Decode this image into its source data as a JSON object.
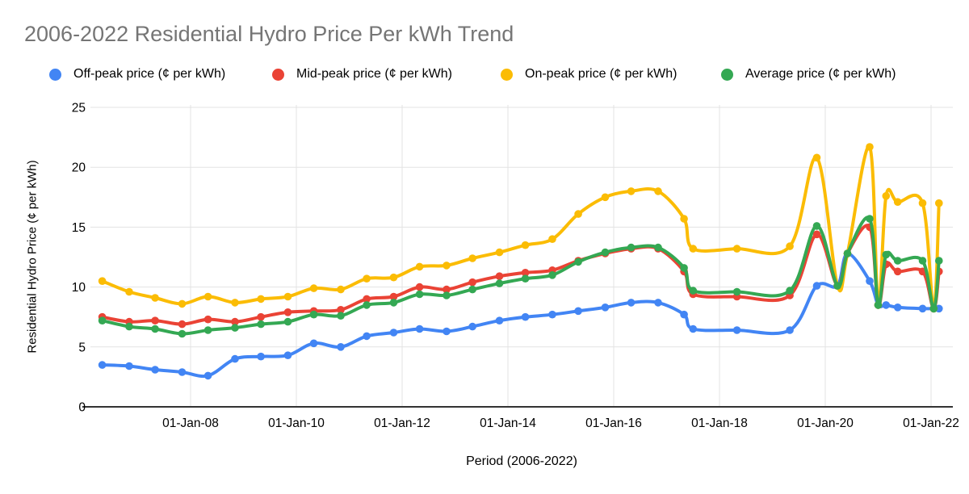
{
  "title": "2006-2022 Residential Hydro Price Per kWh Trend",
  "chart_data": {
    "type": "line",
    "smooth": true,
    "grid": true,
    "legend_position": "top",
    "title": "2006-2022 Residential Hydro Price Per kWh Trend",
    "x_axis": {
      "label": "Period (2006-2022)",
      "range_years": [
        2006,
        2022.4
      ],
      "ticks": [
        {
          "year": 2008,
          "label": "01-Jan-08"
        },
        {
          "year": 2010,
          "label": "01-Jan-10"
        },
        {
          "year": 2012,
          "label": "01-Jan-12"
        },
        {
          "year": 2014,
          "label": "01-Jan-14"
        },
        {
          "year": 2016,
          "label": "01-Jan-16"
        },
        {
          "year": 2018,
          "label": "01-Jan-18"
        },
        {
          "year": 2020,
          "label": "01-Jan-20"
        },
        {
          "year": 2022,
          "label": "01-Jan-22"
        }
      ]
    },
    "y_axis": {
      "label": "Residential Hydro Price (¢ per kWh)",
      "ticks": [
        0,
        5,
        10,
        15,
        20,
        25
      ],
      "range": [
        0,
        25
      ]
    },
    "points": {
      "labels": [
        "01-May-06",
        "01-Nov-06",
        "01-May-07",
        "01-Nov-07",
        "01-May-08",
        "01-Nov-08",
        "01-May-09",
        "01-Nov-09",
        "01-May-10",
        "01-Nov-10",
        "01-May-11",
        "01-Nov-11",
        "01-May-12",
        "01-Nov-12",
        "01-May-13",
        "01-Nov-13",
        "01-May-14",
        "01-Nov-14",
        "01-May-15",
        "01-Nov-15",
        "01-May-16",
        "01-Nov-16",
        "01-May-17",
        "01-Jul-17",
        "01-May-18",
        "01-May-19",
        "01-Nov-19",
        "24-Mar-20",
        "01-Jun-20",
        "01-Nov-20",
        "01-Jan-21",
        "23-Feb-21",
        "01-May-21",
        "01-Nov-21",
        "18-Jan-22",
        "08-Feb-22"
      ],
      "years": [
        2006.33,
        2006.84,
        2007.33,
        2007.84,
        2008.33,
        2008.84,
        2009.33,
        2009.84,
        2010.33,
        2010.84,
        2011.33,
        2011.84,
        2012.33,
        2012.84,
        2013.33,
        2013.84,
        2014.33,
        2014.84,
        2015.33,
        2015.84,
        2016.33,
        2016.84,
        2017.33,
        2017.5,
        2018.33,
        2019.33,
        2019.84,
        2020.23,
        2020.42,
        2020.84,
        2021.0,
        2021.15,
        2021.37,
        2021.84,
        2022.05,
        2022.15
      ]
    },
    "series": [
      {
        "id": "off-peak",
        "name": "Off-peak price (¢ per kWh)",
        "color": "#4285F4",
        "values": [
          3.5,
          3.4,
          3.1,
          2.9,
          2.6,
          4.0,
          4.2,
          4.3,
          5.3,
          5.0,
          5.9,
          6.2,
          6.5,
          6.3,
          6.7,
          7.2,
          7.5,
          7.7,
          8.0,
          8.3,
          8.7,
          8.7,
          7.7,
          6.5,
          6.4,
          6.4,
          10.1,
          10.1,
          12.8,
          10.5,
          8.5,
          8.5,
          8.3,
          8.2,
          8.2,
          8.2
        ]
      },
      {
        "id": "mid-peak",
        "name": "Mid-peak price (¢ per kWh)",
        "color": "#EA4335",
        "values": [
          7.5,
          7.1,
          7.2,
          6.9,
          7.3,
          7.1,
          7.5,
          7.9,
          8.0,
          8.1,
          9.0,
          9.2,
          10.0,
          9.8,
          10.4,
          10.9,
          11.2,
          11.4,
          12.2,
          12.8,
          13.2,
          13.2,
          11.3,
          9.4,
          9.2,
          9.3,
          14.4,
          10.1,
          12.8,
          15.0,
          8.5,
          11.9,
          11.3,
          11.3,
          8.2,
          11.3
        ]
      },
      {
        "id": "on-peak",
        "name": "On-peak price (¢ per kWh)",
        "color": "#FBBC04",
        "values": [
          10.5,
          9.6,
          9.1,
          8.6,
          9.2,
          8.7,
          9.0,
          9.2,
          9.9,
          9.8,
          10.7,
          10.8,
          11.7,
          11.8,
          12.4,
          12.9,
          13.5,
          14.0,
          16.1,
          17.5,
          18.0,
          18.0,
          15.7,
          13.2,
          13.2,
          13.4,
          20.8,
          10.1,
          12.8,
          21.7,
          8.5,
          17.6,
          17.1,
          17.0,
          8.2,
          17.0
        ]
      },
      {
        "id": "average",
        "name": "Average price (¢ per kWh)",
        "color": "#34A853",
        "values": [
          7.2,
          6.7,
          6.5,
          6.1,
          6.4,
          6.6,
          6.9,
          7.1,
          7.7,
          7.6,
          8.5,
          8.7,
          9.4,
          9.3,
          9.8,
          10.3,
          10.7,
          11.0,
          12.1,
          12.9,
          13.3,
          13.3,
          11.6,
          9.7,
          9.6,
          9.7,
          15.1,
          10.1,
          12.8,
          15.7,
          8.5,
          12.7,
          12.2,
          12.2,
          8.2,
          12.2
        ]
      }
    ],
    "style": {
      "title_color": "#757575",
      "gridline_color": "#e3e3e3",
      "axis_line_color": "#333333",
      "tick_text_color": "#000000"
    }
  }
}
